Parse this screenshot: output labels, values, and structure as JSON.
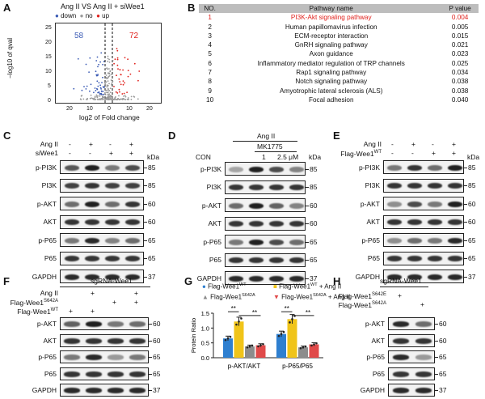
{
  "panelA": {
    "label": "A",
    "title": "Ang II VS Ang II + siWee1",
    "legend": [
      {
        "name": "down",
        "color": "#3b5bb5"
      },
      {
        "name": "no",
        "color": "#999999"
      },
      {
        "name": "up",
        "color": "#e0201b"
      }
    ],
    "count_down": "58",
    "count_up": "72",
    "ylabel": "−log10 of qval",
    "xlabel": "log2 of Fold change",
    "xticks": [
      "20",
      "10",
      "0",
      "10",
      "20"
    ],
    "yticks": [
      "0",
      "5",
      "10",
      "15",
      "20",
      "25"
    ]
  },
  "panelB": {
    "label": "B",
    "headers": [
      "NO.",
      "Pathway name",
      "P value"
    ],
    "rows": [
      [
        "1",
        "PI3K-Akt signaling pathway",
        "0.004"
      ],
      [
        "2",
        "Human papillomavirus infection",
        "0.005"
      ],
      [
        "3",
        "ECM-receptor interaction",
        "0.015"
      ],
      [
        "4",
        "GnRH signaling pathway",
        "0.021"
      ],
      [
        "5",
        "Axon guidance",
        "0.023"
      ],
      [
        "6",
        "Inflammatory mediator regulation of TRP channels",
        "0.025"
      ],
      [
        "7",
        "Rap1 signaling pathway",
        "0.034"
      ],
      [
        "8",
        "Notch signaling pathway",
        "0.038"
      ],
      [
        "9",
        "Amyotrophic lateral sclerosis (ALS)",
        "0.038"
      ],
      [
        "10",
        "Focal adhesion",
        "0.040"
      ]
    ],
    "highlight_color": "#e0201b"
  },
  "panelC": {
    "label": "C",
    "conditions": [
      {
        "name": "Ang II",
        "values": [
          "-",
          "+",
          "-",
          "+"
        ]
      },
      {
        "name": "siWee1",
        "values": [
          "-",
          "-",
          "+",
          "+"
        ]
      }
    ],
    "kda_label": "kDa",
    "rows": [
      {
        "name": "p-PI3K",
        "kda": "85"
      },
      {
        "name": "PI3K",
        "kda": "85"
      },
      {
        "name": "p-AKT",
        "kda": "60"
      },
      {
        "name": "AKT",
        "kda": "60"
      },
      {
        "name": "p-P65",
        "kda": "65"
      },
      {
        "name": "P65",
        "kda": "65"
      },
      {
        "name": "GAPDH",
        "kda": "37"
      }
    ]
  },
  "panelD": {
    "label": "D",
    "angii": "Ang II",
    "mk": "MK1775",
    "lanes": [
      "CON",
      "",
      "1",
      "2.5 μM"
    ],
    "kda_label": "kDa",
    "rows": [
      {
        "name": "p-PI3K",
        "kda": "85"
      },
      {
        "name": "PI3K",
        "kda": "85"
      },
      {
        "name": "p-AKT",
        "kda": "60"
      },
      {
        "name": "AKT",
        "kda": "60"
      },
      {
        "name": "p-P65",
        "kda": "65"
      },
      {
        "name": "P65",
        "kda": "65"
      },
      {
        "name": "GAPDH",
        "kda": "37"
      }
    ]
  },
  "panelE": {
    "label": "E",
    "conditions": [
      {
        "name": "Ang II",
        "values": [
          "-",
          "+",
          "-",
          "+"
        ]
      },
      {
        "name": "Flag-Wee1",
        "sup": "WT",
        "values": [
          "-",
          "-",
          "+",
          "+"
        ]
      }
    ],
    "kda_label": "kDa",
    "rows": [
      {
        "name": "p-PI3K",
        "kda": "85"
      },
      {
        "name": "PI3K",
        "kda": "85"
      },
      {
        "name": "p-AKT",
        "kda": "60"
      },
      {
        "name": "AKT",
        "kda": "60"
      },
      {
        "name": "p-P65",
        "kda": "65"
      },
      {
        "name": "P65",
        "kda": "65"
      },
      {
        "name": "GAPDH",
        "kda": "37"
      }
    ]
  },
  "panelF": {
    "label": "F",
    "header": "sgRNA-Wee1",
    "conditions": [
      {
        "name": "Ang II",
        "values": [
          "",
          "+",
          "",
          "+"
        ]
      },
      {
        "name": "Flag-Wee1",
        "sup": "S642A",
        "values": [
          "",
          "",
          "+",
          "+"
        ]
      },
      {
        "name": "Flag-Wee1",
        "sup": "WT",
        "values": [
          "+",
          "+",
          "",
          ""
        ]
      }
    ],
    "rows": [
      {
        "name": "p-AKT",
        "kda": "60"
      },
      {
        "name": "AKT",
        "kda": "60"
      },
      {
        "name": "p-P65",
        "kda": "65"
      },
      {
        "name": "P65",
        "kda": "65"
      },
      {
        "name": "GAPDH",
        "kda": "37"
      }
    ]
  },
  "panelG": {
    "label": "G",
    "legend": [
      {
        "name": "Flag-Wee1",
        "sup": "WT",
        "suffix": "",
        "color": "#2e7fd0",
        "marker": "●"
      },
      {
        "name": "Flag-Wee1",
        "sup": "WT",
        "suffix": " + Ang II",
        "color": "#f0c419",
        "marker": "■"
      },
      {
        "name": "Flag-Wee1",
        "sup": "S642A",
        "suffix": "",
        "color": "#8c8c8c",
        "marker": "▲"
      },
      {
        "name": "Flag-Wee1",
        "sup": "S642A",
        "suffix": " + Ang II",
        "color": "#e04a4a",
        "marker": "▼"
      }
    ],
    "sig": "**"
  },
  "chart_data": {
    "type": "bar",
    "categories": [
      "p-AKT/AKT",
      "p-P65/P65"
    ],
    "series": [
      {
        "name": "Flag-Wee1 WT",
        "values": [
          0.65,
          0.8
        ]
      },
      {
        "name": "Flag-Wee1 WT + Ang II",
        "values": [
          1.22,
          1.3
        ]
      },
      {
        "name": "Flag-Wee1 S642A",
        "values": [
          0.38,
          0.35
        ]
      },
      {
        "name": "Flag-Wee1 S642A + Ang II",
        "values": [
          0.42,
          0.45
        ]
      }
    ],
    "ylabel": "Protein Ratio",
    "ylim": [
      0,
      1.5
    ],
    "yticks": [
      "0.0",
      "0.5",
      "1.0",
      "1.5"
    ]
  },
  "panelH": {
    "label": "H",
    "header": "sgRNA-Wee1",
    "conditions": [
      {
        "name": "Flag-Wee1",
        "sup": "S642E",
        "values": [
          "+",
          ""
        ]
      },
      {
        "name": "Flag-Wee1",
        "sup": "S642A",
        "values": [
          "",
          "+"
        ]
      }
    ],
    "rows": [
      {
        "name": "p-AKT",
        "kda": "60"
      },
      {
        "name": "AKT",
        "kda": "60"
      },
      {
        "name": "p-P65",
        "kda": "65"
      },
      {
        "name": "P65",
        "kda": "65"
      },
      {
        "name": "GAPDH",
        "kda": "37"
      }
    ]
  }
}
